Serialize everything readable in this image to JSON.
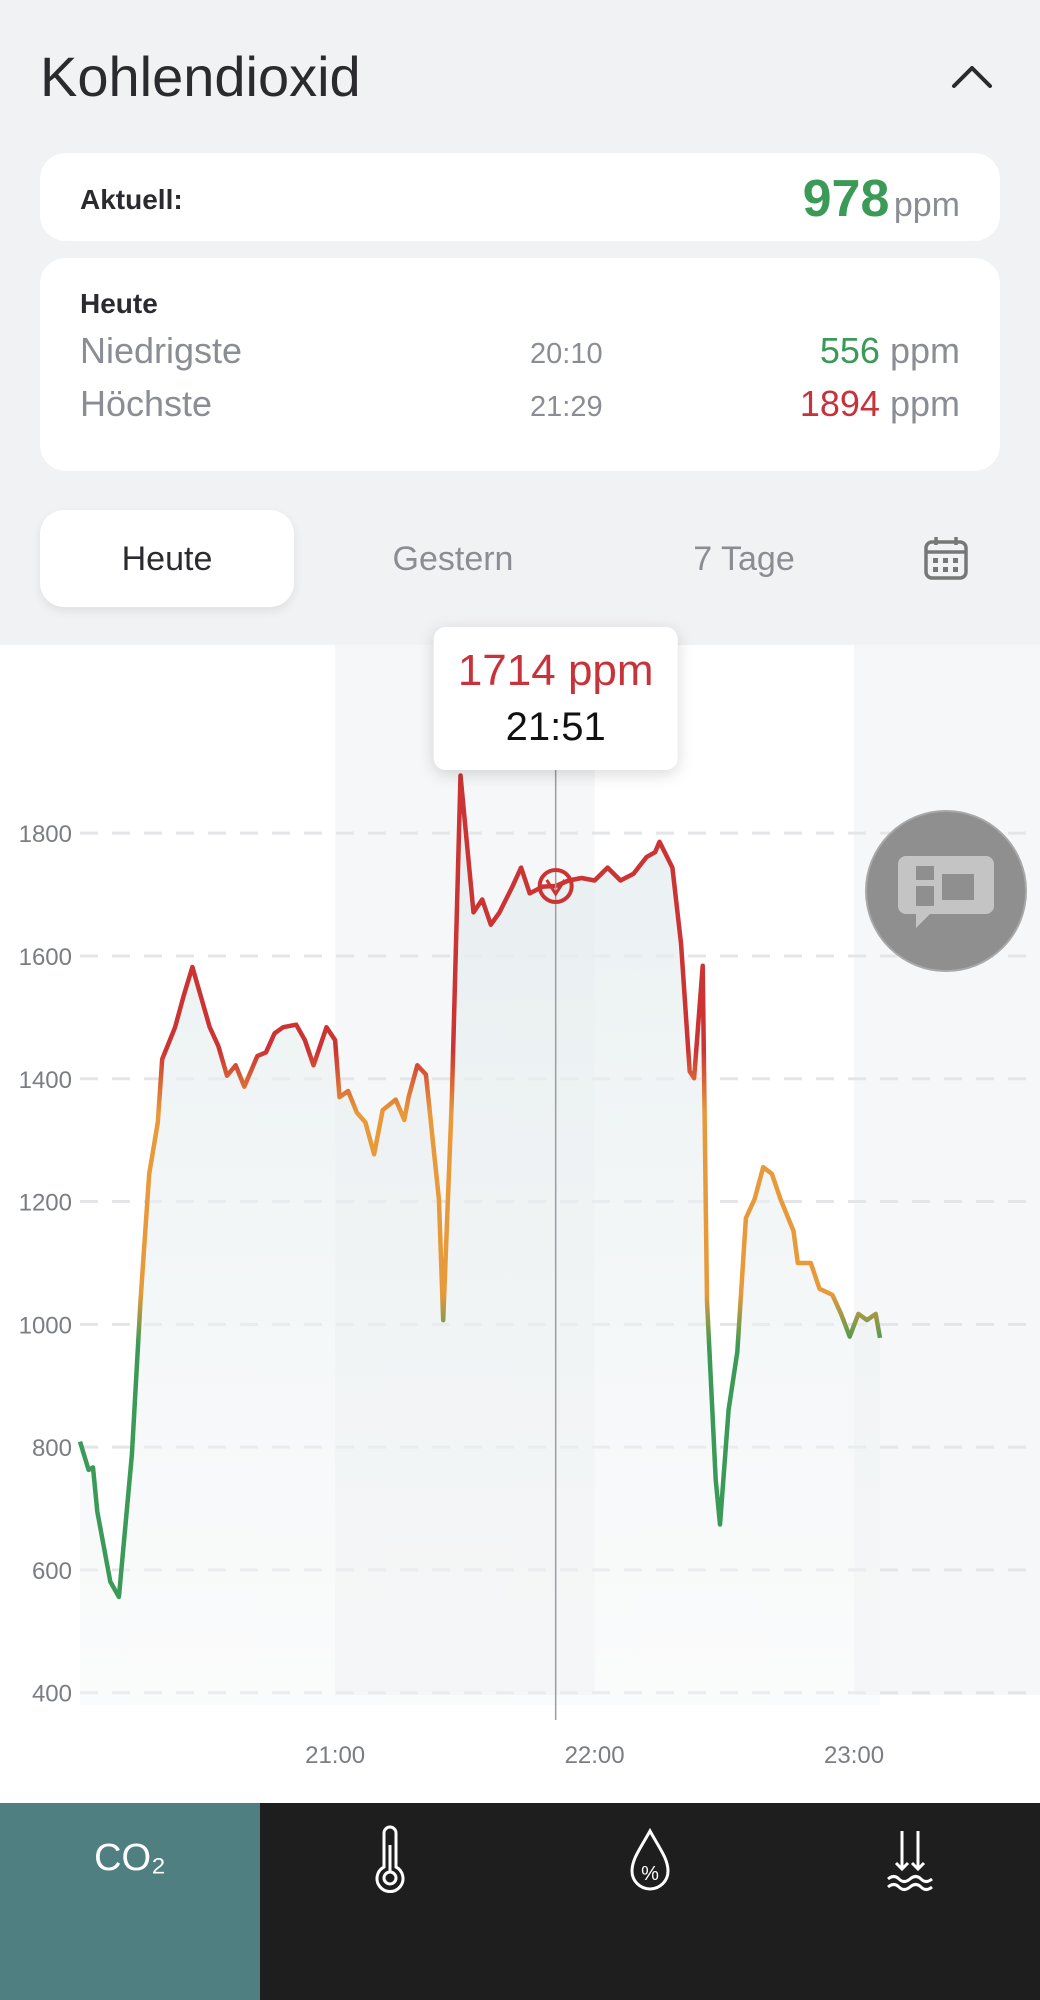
{
  "header": {
    "title": "Kohlendioxid"
  },
  "unit": "ppm",
  "current": {
    "label": "Aktuell:",
    "value": 978
  },
  "today": {
    "title": "Heute",
    "low": {
      "label": "Niedrigste",
      "time": "20:10",
      "value": 556
    },
    "high": {
      "label": "Höchste",
      "time": "21:29",
      "value": 1894
    }
  },
  "tabs": [
    "Heute",
    "Gestern",
    "7 Tage"
  ],
  "bottom_nav": {
    "co2": "CO₂"
  },
  "chart_data": {
    "type": "line",
    "x": [
      "20:01",
      "20:03",
      "20:04",
      "20:05",
      "20:08",
      "20:10",
      "20:13",
      "20:15",
      "20:17",
      "20:19",
      "20:20",
      "20:23",
      "20:25",
      "20:27",
      "20:28",
      "20:31",
      "20:33",
      "20:35",
      "20:37",
      "20:39",
      "20:42",
      "20:44",
      "20:46",
      "20:48",
      "20:51",
      "20:53",
      "20:55",
      "20:58",
      "21:00",
      "21:01",
      "21:03",
      "21:05",
      "21:07",
      "21:09",
      "21:11",
      "21:14",
      "21:16",
      "21:17",
      "21:19",
      "21:21",
      "21:24",
      "21:25",
      "21:27",
      "21:29",
      "21:31",
      "21:32",
      "21:34",
      "21:36",
      "21:38",
      "21:41",
      "21:43",
      "21:45",
      "21:48",
      "21:51",
      "21:54",
      "21:57",
      "22:00",
      "22:03",
      "22:06",
      "22:09",
      "22:12",
      "22:14",
      "22:15",
      "22:18",
      "22:20",
      "22:22",
      "22:23",
      "22:25",
      "22:26",
      "22:28",
      "22:29",
      "22:31",
      "22:33",
      "22:35",
      "22:37",
      "22:39",
      "22:41",
      "22:43",
      "22:46",
      "22:47",
      "22:50",
      "22:52",
      "22:55",
      "22:57",
      "22:59",
      "23:01",
      "23:03",
      "23:05",
      "23:06"
    ],
    "series": [
      {
        "name": "CO₂",
        "colors": [
          "#3b9a57",
          "#e8993a",
          "#cc3333"
        ],
        "values": [
          809,
          763,
          767,
          695,
          581,
          556,
          788,
          1038,
          1245,
          1329,
          1432,
          1484,
          1536,
          1582,
          1557,
          1484,
          1453,
          1405,
          1422,
          1387,
          1437,
          1443,
          1474,
          1484,
          1488,
          1463,
          1422,
          1484,
          1463,
          1370,
          1380,
          1345,
          1329,
          1277,
          1349,
          1366,
          1333,
          1370,
          1422,
          1407,
          1204,
          1007,
          1370,
          1894,
          1744,
          1671,
          1692,
          1651,
          1671,
          1713,
          1744,
          1702,
          1713,
          1714,
          1723,
          1727,
          1723,
          1744,
          1723,
          1734,
          1761,
          1769,
          1786,
          1744,
          1619,
          1412,
          1401,
          1584,
          1038,
          747,
          674,
          861,
          955,
          1173,
          1204,
          1256,
          1245,
          1204,
          1152,
          1100,
          1100,
          1058,
          1048,
          1017,
          980,
          1017,
          1007,
          1017,
          978
        ]
      }
    ],
    "xlim": [
      "20:01",
      "23:43"
    ],
    "xticks": [
      "21:00",
      "22:00",
      "23:00"
    ],
    "ylim": [
      380,
      2100
    ],
    "yticks": [
      400,
      600,
      800,
      1000,
      1200,
      1400,
      1600,
      1800
    ],
    "grid": true,
    "tooltip": {
      "x": "21:51"
    }
  }
}
